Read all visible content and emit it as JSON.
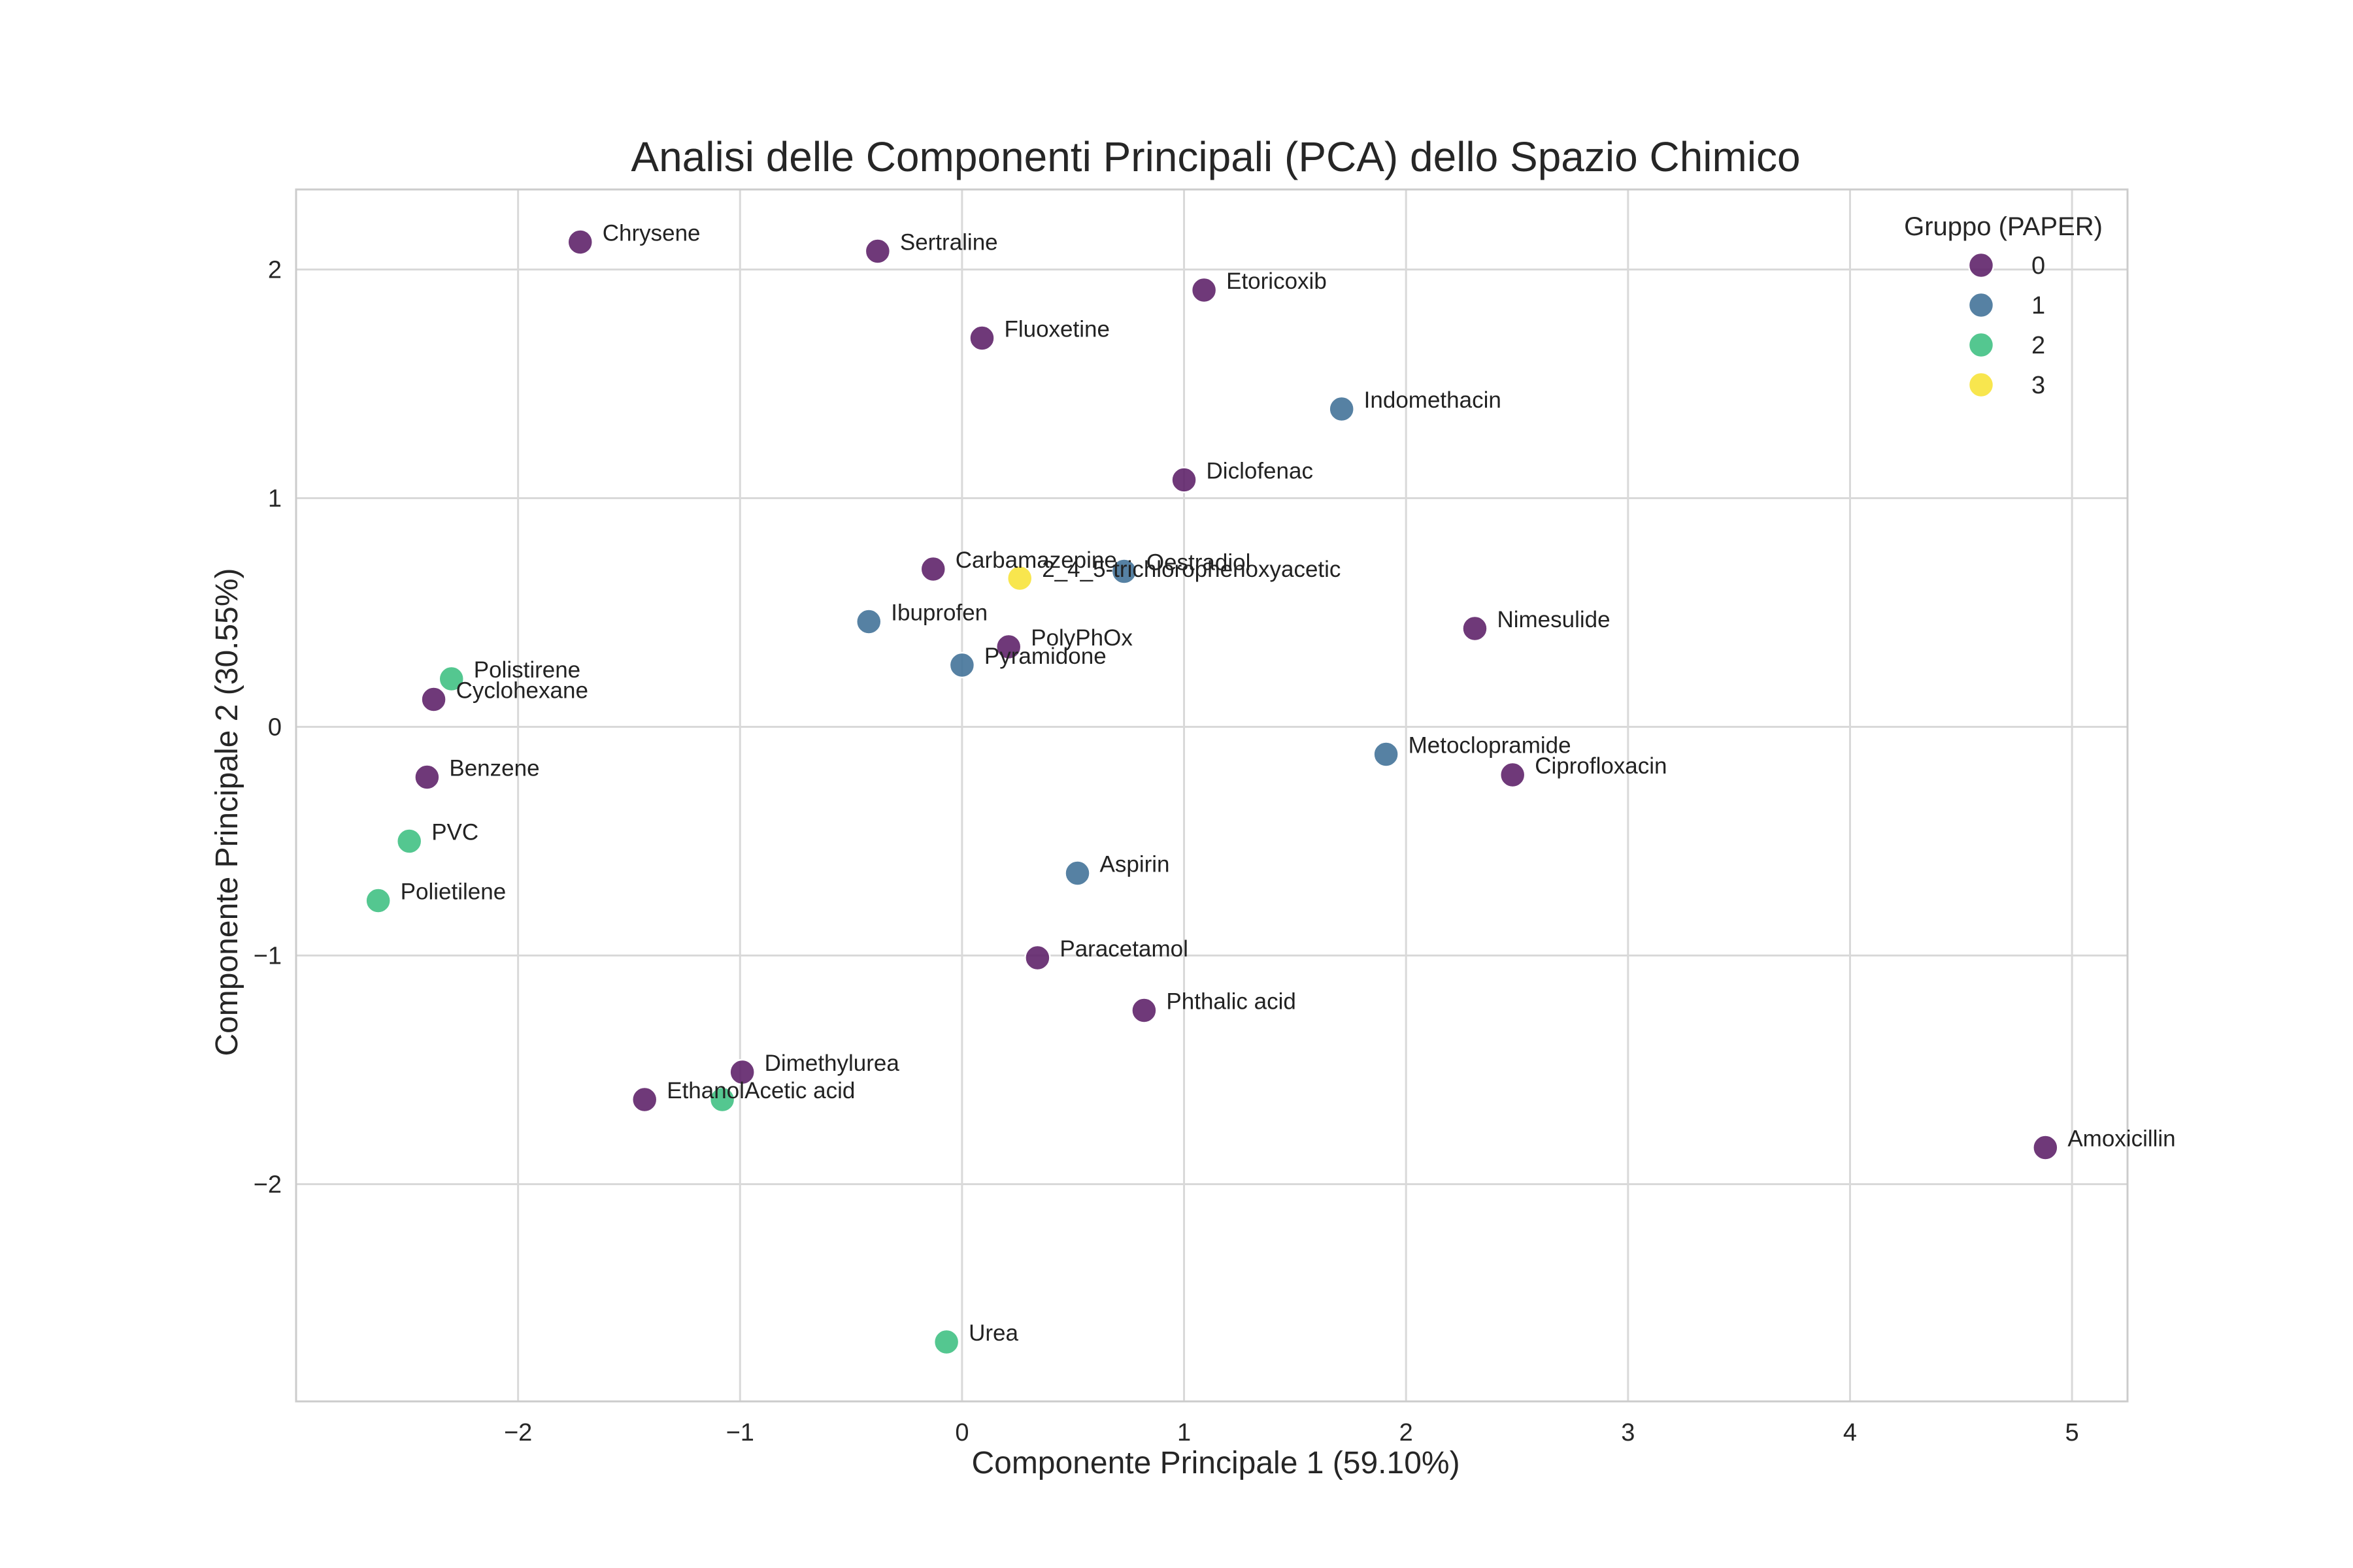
{
  "chart_data": {
    "type": "scatter",
    "title": "Analisi delle Componenti Principali (PCA) dello Spazio Chimico",
    "xlabel": "Componente Principale 1 (59.10%)",
    "ylabel": "Componente Principale 2 (30.55%)",
    "xlim": [
      -3.0,
      5.25
    ],
    "ylim": [
      -2.95,
      2.35
    ],
    "xticks": [
      -2,
      -1,
      0,
      1,
      2,
      3,
      4,
      5
    ],
    "yticks": [
      -2,
      -1,
      0,
      1,
      2
    ],
    "xtick_labels": [
      "−2",
      "−1",
      "0",
      "1",
      "2",
      "3",
      "4",
      "5"
    ],
    "ytick_labels": [
      "−2",
      "−1",
      "0",
      "1",
      "2"
    ],
    "grid": true,
    "legend": {
      "title": "Gruppo (PAPER)",
      "placement": "top-right",
      "entries": [
        {
          "label": "0",
          "color": "#5b1e66"
        },
        {
          "label": "1",
          "color": "#3f6f96"
        },
        {
          "label": "2",
          "color": "#3cbf81"
        },
        {
          "label": "3",
          "color": "#f7e236"
        }
      ]
    },
    "points": [
      {
        "label": "Chrysene",
        "x": -1.72,
        "y": 2.12,
        "group": 0
      },
      {
        "label": "Sertraline",
        "x": -0.38,
        "y": 2.08,
        "group": 0
      },
      {
        "label": "Etoricoxib",
        "x": 1.09,
        "y": 1.91,
        "group": 0
      },
      {
        "label": "Fluoxetine",
        "x": 0.09,
        "y": 1.7,
        "group": 0
      },
      {
        "label": "Indomethacin",
        "x": 1.71,
        "y": 1.39,
        "group": 1
      },
      {
        "label": "Diclofenac",
        "x": 1.0,
        "y": 1.08,
        "group": 0
      },
      {
        "label": "Carbamazepine",
        "x": -0.13,
        "y": 0.69,
        "group": 0
      },
      {
        "label": "Oestradiol",
        "x": 0.73,
        "y": 0.68,
        "group": 1
      },
      {
        "label": "2_4_5-trichlorophenoxyacetic",
        "x": 0.26,
        "y": 0.65,
        "group": 3
      },
      {
        "label": "Ibuprofen",
        "x": -0.42,
        "y": 0.46,
        "group": 1
      },
      {
        "label": "Nimesulide",
        "x": 2.31,
        "y": 0.43,
        "group": 0
      },
      {
        "label": "PolyPhOx",
        "x": 0.21,
        "y": 0.35,
        "group": 0
      },
      {
        "label": "Pyramidone",
        "x": 0.0,
        "y": 0.27,
        "group": 1
      },
      {
        "label": "Polistirene",
        "x": -2.3,
        "y": 0.21,
        "group": 2
      },
      {
        "label": "Cyclohexane",
        "x": -2.38,
        "y": 0.12,
        "group": 0
      },
      {
        "label": "Metoclopramide",
        "x": 1.91,
        "y": -0.12,
        "group": 1
      },
      {
        "label": "Ciprofloxacin",
        "x": 2.48,
        "y": -0.21,
        "group": 0
      },
      {
        "label": "Benzene",
        "x": -2.41,
        "y": -0.22,
        "group": 0
      },
      {
        "label": "PVC",
        "x": -2.49,
        "y": -0.5,
        "group": 2
      },
      {
        "label": "Aspirin",
        "x": 0.52,
        "y": -0.64,
        "group": 1
      },
      {
        "label": "Polietilene",
        "x": -2.63,
        "y": -0.76,
        "group": 2
      },
      {
        "label": "Paracetamol",
        "x": 0.34,
        "y": -1.01,
        "group": 0
      },
      {
        "label": "Phthalic acid",
        "x": 0.82,
        "y": -1.24,
        "group": 0
      },
      {
        "label": "Dimethylurea",
        "x": -0.99,
        "y": -1.51,
        "group": 0
      },
      {
        "label": "Ethanol",
        "x": -1.43,
        "y": -1.63,
        "group": 0
      },
      {
        "label": "Acetic acid",
        "x": -1.08,
        "y": -1.63,
        "group": 2
      },
      {
        "label": "Amoxicillin",
        "x": 4.88,
        "y": -1.84,
        "group": 0
      },
      {
        "label": "Urea",
        "x": -0.07,
        "y": -2.69,
        "group": 2
      }
    ]
  }
}
